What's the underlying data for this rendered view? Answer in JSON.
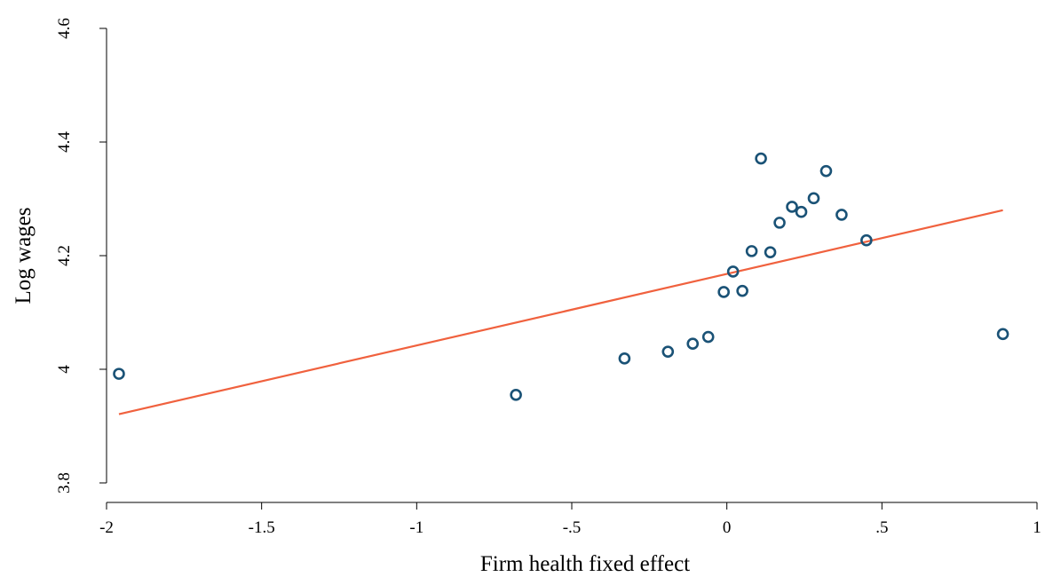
{
  "chart_data": {
    "type": "scatter",
    "title": "",
    "xlabel": "Firm health fixed effect",
    "ylabel": "Log wages",
    "xlim": [
      -2,
      1
    ],
    "ylim": [
      3.8,
      4.6
    ],
    "x_ticks": [
      -2,
      -1.5,
      -1,
      -0.5,
      0,
      0.5,
      1
    ],
    "x_tick_labels": [
      "-2",
      "-1.5",
      "-1",
      "-.5",
      "0",
      ".5",
      "1"
    ],
    "y_ticks": [
      3.8,
      4,
      4.2,
      4.4,
      4.6
    ],
    "y_tick_labels": [
      "3.8",
      "4",
      "4.2",
      "4.4",
      "4.6"
    ],
    "grid": false,
    "series": [
      {
        "kind": "scatter",
        "color": "#1a5276",
        "points": [
          {
            "x": -1.96,
            "y": 3.992
          },
          {
            "x": -0.68,
            "y": 3.955
          },
          {
            "x": -0.33,
            "y": 4.019
          },
          {
            "x": -0.19,
            "y": 4.031
          },
          {
            "x": -0.11,
            "y": 4.045
          },
          {
            "x": -0.06,
            "y": 4.057
          },
          {
            "x": -0.01,
            "y": 4.136
          },
          {
            "x": 0.02,
            "y": 4.172
          },
          {
            "x": 0.05,
            "y": 4.138
          },
          {
            "x": 0.08,
            "y": 4.208
          },
          {
            "x": 0.11,
            "y": 4.371
          },
          {
            "x": 0.14,
            "y": 4.206
          },
          {
            "x": 0.17,
            "y": 4.258
          },
          {
            "x": 0.21,
            "y": 4.286
          },
          {
            "x": 0.24,
            "y": 4.277
          },
          {
            "x": 0.28,
            "y": 4.301
          },
          {
            "x": 0.32,
            "y": 4.349
          },
          {
            "x": 0.37,
            "y": 4.272
          },
          {
            "x": 0.45,
            "y": 4.227
          },
          {
            "x": 0.89,
            "y": 4.062
          }
        ]
      },
      {
        "kind": "line",
        "color": "#f0613e",
        "points": [
          {
            "x": -1.96,
            "y": 3.921
          },
          {
            "x": 0.89,
            "y": 4.28
          }
        ]
      }
    ]
  }
}
